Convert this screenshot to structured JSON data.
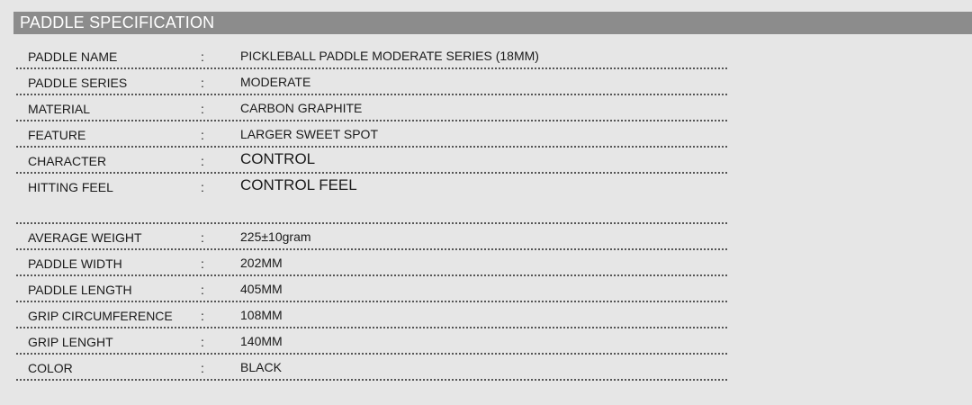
{
  "header": {
    "title": "PADDLE SPECIFICATION"
  },
  "rows": [
    {
      "label": "PADDLE NAME",
      "colon": ":",
      "value": "PICKLEBALL PADDLE MODERATE SERIES (18MM)"
    },
    {
      "label": "PADDLE SERIES",
      "colon": ":",
      "value": "MODERATE"
    },
    {
      "label": "MATERIAL",
      "colon": ":",
      "value": "CARBON GRAPHITE"
    },
    {
      "label": "FEATURE",
      "colon": ":",
      "value": "LARGER SWEET SPOT"
    },
    {
      "label": "CHARACTER",
      "colon": ":",
      "value": "CONTROL"
    },
    {
      "label": "HITTING FEEL",
      "colon": ":",
      "value": "CONTROL FEEL"
    },
    {
      "label": "AVERAGE WEIGHT",
      "colon": ":",
      "value": "225±10gram"
    },
    {
      "label": "PADDLE WIDTH",
      "colon": ":",
      "value": "202MM"
    },
    {
      "label": "PADDLE LENGTH",
      "colon": ":",
      "value": "405MM"
    },
    {
      "label": "GRIP CIRCUMFERENCE",
      "colon": ":",
      "value": "108MM"
    },
    {
      "label": "GRIP LENGHT",
      "colon": ":",
      "value": "140MM"
    },
    {
      "label": "COLOR",
      "colon": ":",
      "value": "BLACK"
    }
  ]
}
